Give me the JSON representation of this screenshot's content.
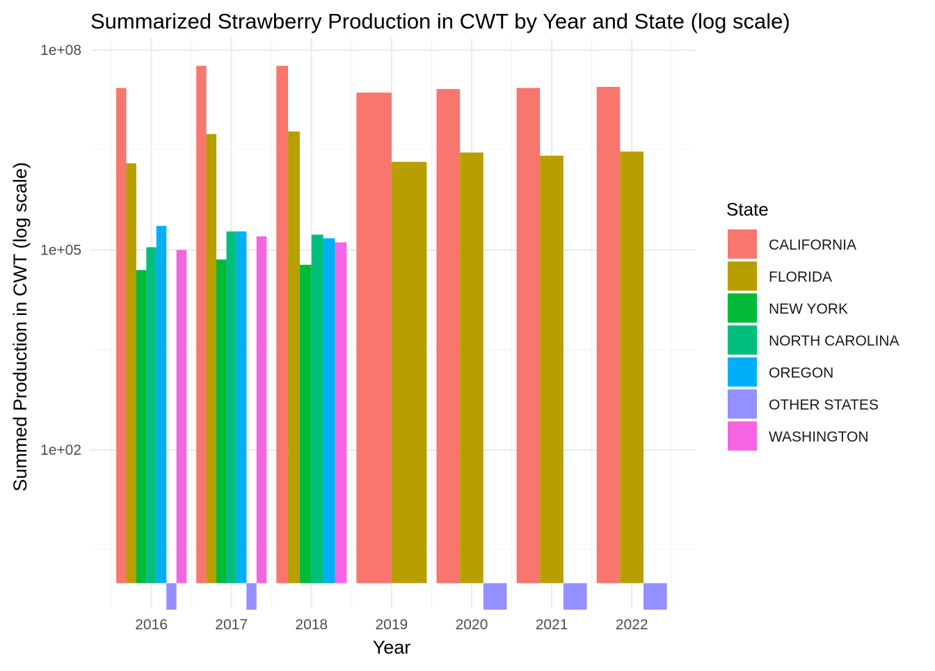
{
  "chart_data": {
    "type": "bar",
    "title": "Summarized Strawberry Production in CWT by Year and State (log scale)",
    "xlabel": "Year",
    "ylabel": "Summed Production in CWT (log scale)",
    "y_scale": "log10",
    "ylim": [
      0.11,
      100000000
    ],
    "y_ticks": [
      {
        "value": 100,
        "label": "1e+02"
      },
      {
        "value": 100000,
        "label": "1e+05"
      },
      {
        "value": 100000000,
        "label": "1e+08"
      }
    ],
    "grid": true,
    "legend_title": "State",
    "legend_position": "right",
    "categories": [
      "2016",
      "2017",
      "2018",
      "2019",
      "2020",
      "2021",
      "2022"
    ],
    "series": [
      {
        "name": "CALIFORNIA",
        "color": "#F8766D",
        "values": [
          27000000,
          58000000,
          58000000,
          23000000,
          26000000,
          27000000,
          28000000
        ]
      },
      {
        "name": "FLORIDA",
        "color": "#B79F00",
        "values": [
          2000000,
          5500000,
          6000000,
          2100000,
          2900000,
          2600000,
          3000000
        ]
      },
      {
        "name": "NEW YORK",
        "color": "#00BA38",
        "values": [
          50000,
          72000,
          60000,
          null,
          null,
          null,
          null
        ]
      },
      {
        "name": "NORTH CAROLINA",
        "color": "#00BF7D",
        "values": [
          110000,
          190000,
          170000,
          null,
          null,
          null,
          null
        ]
      },
      {
        "name": "OREGON",
        "color": "#00B0F6",
        "values": [
          230000,
          190000,
          150000,
          null,
          null,
          null,
          null
        ]
      },
      {
        "name": "OTHER STATES",
        "color": "#9590FF",
        "values": [
          0.4,
          0.4,
          null,
          null,
          0.4,
          0.4,
          0.4
        ]
      },
      {
        "name": "WASHINGTON",
        "color": "#F564E3",
        "values": [
          100000,
          160000,
          130000,
          null,
          null,
          null,
          null
        ]
      }
    ]
  }
}
